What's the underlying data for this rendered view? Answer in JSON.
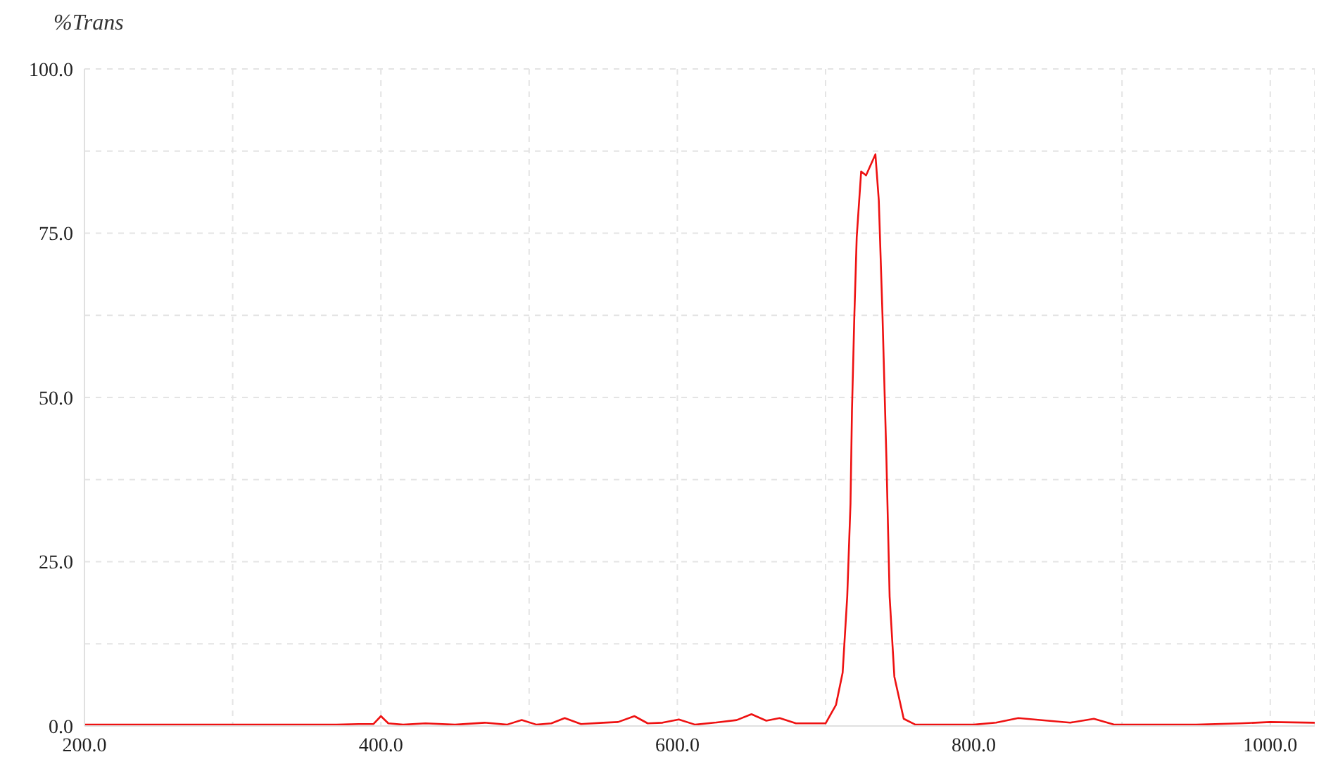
{
  "chart_data": {
    "type": "line",
    "ylabel": "%Trans",
    "x": [
      200,
      250,
      300,
      350,
      370,
      385,
      395,
      400,
      405,
      415,
      430,
      450,
      470,
      485,
      495,
      505,
      515,
      524,
      535,
      550,
      560,
      571,
      580,
      590,
      601,
      612,
      625,
      640,
      650,
      660,
      669,
      680,
      690,
      700,
      707,
      711.5,
      714.6,
      716.8,
      717.8,
      719.4,
      721,
      724,
      727.3,
      733.6,
      735.9,
      738.4,
      741,
      743.2,
      746.4,
      752.7,
      760.6,
      780,
      800,
      815,
      830,
      850,
      865,
      881,
      895,
      920,
      950,
      980,
      1000,
      1030
    ],
    "series": [
      {
        "color": "#ee1111",
        "values": [
          0.2,
          0.2,
          0.2,
          0.2,
          0.2,
          0.3,
          0.3,
          1.5,
          0.4,
          0.2,
          0.4,
          0.2,
          0.5,
          0.2,
          0.9,
          0.2,
          0.4,
          1.2,
          0.3,
          0.5,
          0.6,
          1.5,
          0.4,
          0.5,
          1,
          0.2,
          0.5,
          0.9,
          1.8,
          0.8,
          1.2,
          0.4,
          0.4,
          0.4,
          3.2,
          8.1,
          19.7,
          33.8,
          48,
          62.4,
          74.4,
          84.4,
          83.8,
          87,
          80,
          62.4,
          41,
          19.7,
          7.5,
          1.1,
          0.2,
          0.2,
          0.2,
          0.5,
          1.2,
          0.8,
          0.5,
          1.1,
          0.2,
          0.2,
          0.2,
          0.4,
          0.6,
          0.5
        ]
      }
    ],
    "xlim": [
      200,
      1030
    ],
    "xticks": [
      {
        "value": 200,
        "label": "200.0"
      },
      {
        "value": 300,
        "label": null
      },
      {
        "value": 400,
        "label": "400.0"
      },
      {
        "value": 500,
        "label": null
      },
      {
        "value": 600,
        "label": "600.0"
      },
      {
        "value": 700,
        "label": null
      },
      {
        "value": 800,
        "label": "800.0"
      },
      {
        "value": 900,
        "label": null
      },
      {
        "value": 1000,
        "label": "1000.0"
      }
    ],
    "ylim": [
      0,
      100
    ],
    "yticks": [
      {
        "value": 0,
        "label": "0.0"
      },
      {
        "value": 12.5,
        "label": null
      },
      {
        "value": 25,
        "label": "25.0"
      },
      {
        "value": 37.5,
        "label": null
      },
      {
        "value": 50,
        "label": "50.0"
      },
      {
        "value": 62.5,
        "label": null
      },
      {
        "value": 75,
        "label": "75.0"
      },
      {
        "value": 87.5,
        "label": null
      },
      {
        "value": 100,
        "label": "100.0"
      }
    ],
    "grid": true,
    "marker": "none",
    "line_style": "solid"
  }
}
